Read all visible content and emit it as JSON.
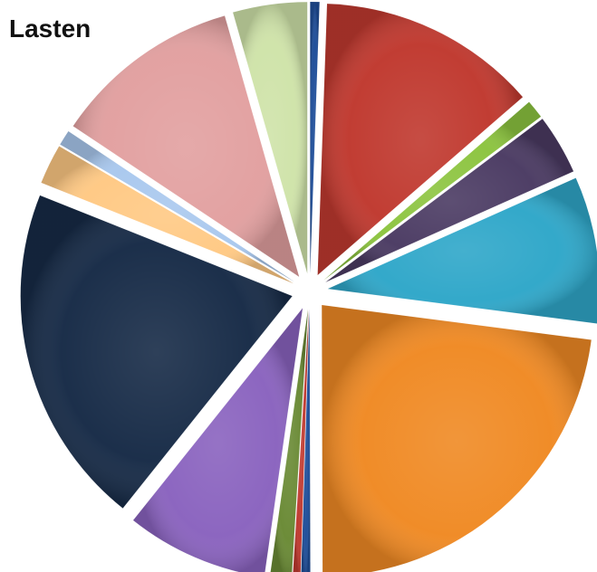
{
  "chart_data": {
    "type": "pie",
    "title": "Lasten",
    "legend": "none",
    "start_angle_deg": 90,
    "direction": "clockwise",
    "slices": [
      {
        "value": 0.6,
        "color": "#1F4E99"
      },
      {
        "value": 14.2,
        "color": "#C0392F"
      },
      {
        "value": 1.2,
        "color": "#8CC43F"
      },
      {
        "value": 3.9,
        "color": "#4B3B63"
      },
      {
        "value": 9.5,
        "color": "#2FA7C9"
      },
      {
        "value": 24.9,
        "color": "#F08A24"
      },
      {
        "value": 0.6,
        "color": "#1F4E99"
      },
      {
        "value": 0.5,
        "color": "#C0392F"
      },
      {
        "value": 1.4,
        "color": "#6A8A35"
      },
      {
        "value": 9.2,
        "color": "#8A63BF"
      },
      {
        "value": 22.1,
        "color": "#172B47"
      },
      {
        "value": 2.6,
        "color": "#FFC984"
      },
      {
        "value": 1.0,
        "color": "#A9C8EE"
      },
      {
        "value": 12.2,
        "color": "#E2A0A0"
      },
      {
        "value": 4.8,
        "color": "#CFE3A9"
      }
    ]
  }
}
